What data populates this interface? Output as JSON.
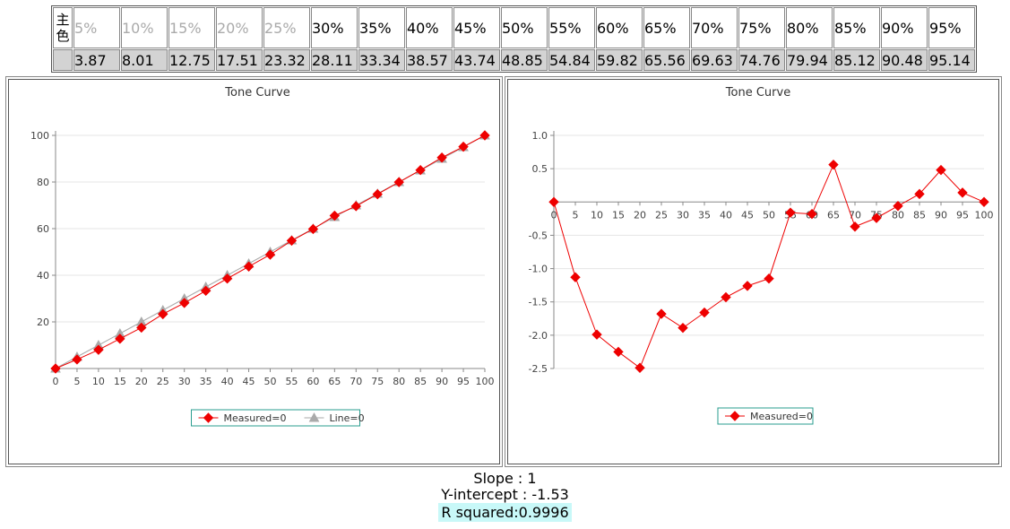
{
  "table": {
    "header_label": "主色",
    "percent_labels": [
      "5%",
      "10%",
      "15%",
      "20%",
      "25%",
      "30%",
      "35%",
      "40%",
      "45%",
      "50%",
      "55%",
      "60%",
      "65%",
      "70%",
      "75%",
      "80%",
      "85%",
      "90%",
      "95%"
    ],
    "values": [
      "3.87",
      "8.01",
      "12.75",
      "17.51",
      "23.32",
      "28.11",
      "33.34",
      "38.57",
      "43.74",
      "48.85",
      "54.84",
      "59.82",
      "65.56",
      "69.63",
      "74.76",
      "79.94",
      "85.12",
      "90.48",
      "95.14"
    ]
  },
  "chart_data": [
    {
      "type": "line",
      "title": "Tone Curve",
      "x": [
        0,
        5,
        10,
        15,
        20,
        25,
        30,
        35,
        40,
        45,
        50,
        55,
        60,
        65,
        70,
        75,
        80,
        85,
        90,
        95,
        100
      ],
      "xticks": [
        "0",
        "5",
        "10",
        "15",
        "20",
        "25",
        "30",
        "35",
        "40",
        "45",
        "50",
        "55",
        "60",
        "65",
        "70",
        "75",
        "80",
        "85",
        "90",
        "95",
        "100"
      ],
      "yticks": [
        "20",
        "40",
        "60",
        "80",
        "100"
      ],
      "ylim": [
        0,
        100
      ],
      "xlim": [
        0,
        100
      ],
      "legend_position": "bottom",
      "series": [
        {
          "name": "Measured=0",
          "color": "#ee0000",
          "marker": "diamond",
          "values": [
            0,
            3.87,
            8.01,
            12.75,
            17.51,
            23.32,
            28.11,
            33.34,
            38.57,
            43.74,
            48.85,
            54.84,
            59.82,
            65.56,
            69.63,
            74.76,
            79.94,
            85.12,
            90.48,
            95.14,
            100
          ]
        },
        {
          "name": "Line=0",
          "color": "#aaaaaa",
          "marker": "triangle",
          "values": [
            0,
            5,
            10,
            15,
            20,
            25,
            30,
            35,
            40,
            45,
            50,
            55,
            60,
            65,
            70,
            75,
            80,
            85,
            90,
            95,
            100
          ]
        }
      ]
    },
    {
      "type": "line",
      "title": "Tone Curve",
      "x": [
        0,
        5,
        10,
        15,
        20,
        25,
        30,
        35,
        40,
        45,
        50,
        55,
        60,
        65,
        70,
        75,
        80,
        85,
        90,
        95,
        100
      ],
      "xticks": [
        "0",
        "5",
        "10",
        "15",
        "20",
        "25",
        "30",
        "35",
        "40",
        "45",
        "50",
        "55",
        "60",
        "65",
        "70",
        "75",
        "80",
        "85",
        "90",
        "95",
        "100"
      ],
      "yticks": [
        "1.0",
        "0.5",
        "-0.5",
        "-1.0",
        "-1.5",
        "-2.0",
        "-2.5"
      ],
      "ylim": [
        -2.5,
        1.0
      ],
      "xlim": [
        0,
        100
      ],
      "legend_position": "bottom",
      "series": [
        {
          "name": "Measured=0",
          "color": "#ee0000",
          "marker": "diamond",
          "values": [
            0,
            -1.13,
            -1.99,
            -2.25,
            -2.49,
            -1.68,
            -1.89,
            -1.66,
            -1.43,
            -1.26,
            -1.15,
            -0.16,
            -0.18,
            0.56,
            -0.37,
            -0.24,
            -0.06,
            0.12,
            0.48,
            0.14,
            0
          ]
        }
      ]
    }
  ],
  "stats": {
    "slope": "Slope : 1",
    "intercept": "Y-intercept : -1.53",
    "r_squared": "R squared:0.9996"
  }
}
